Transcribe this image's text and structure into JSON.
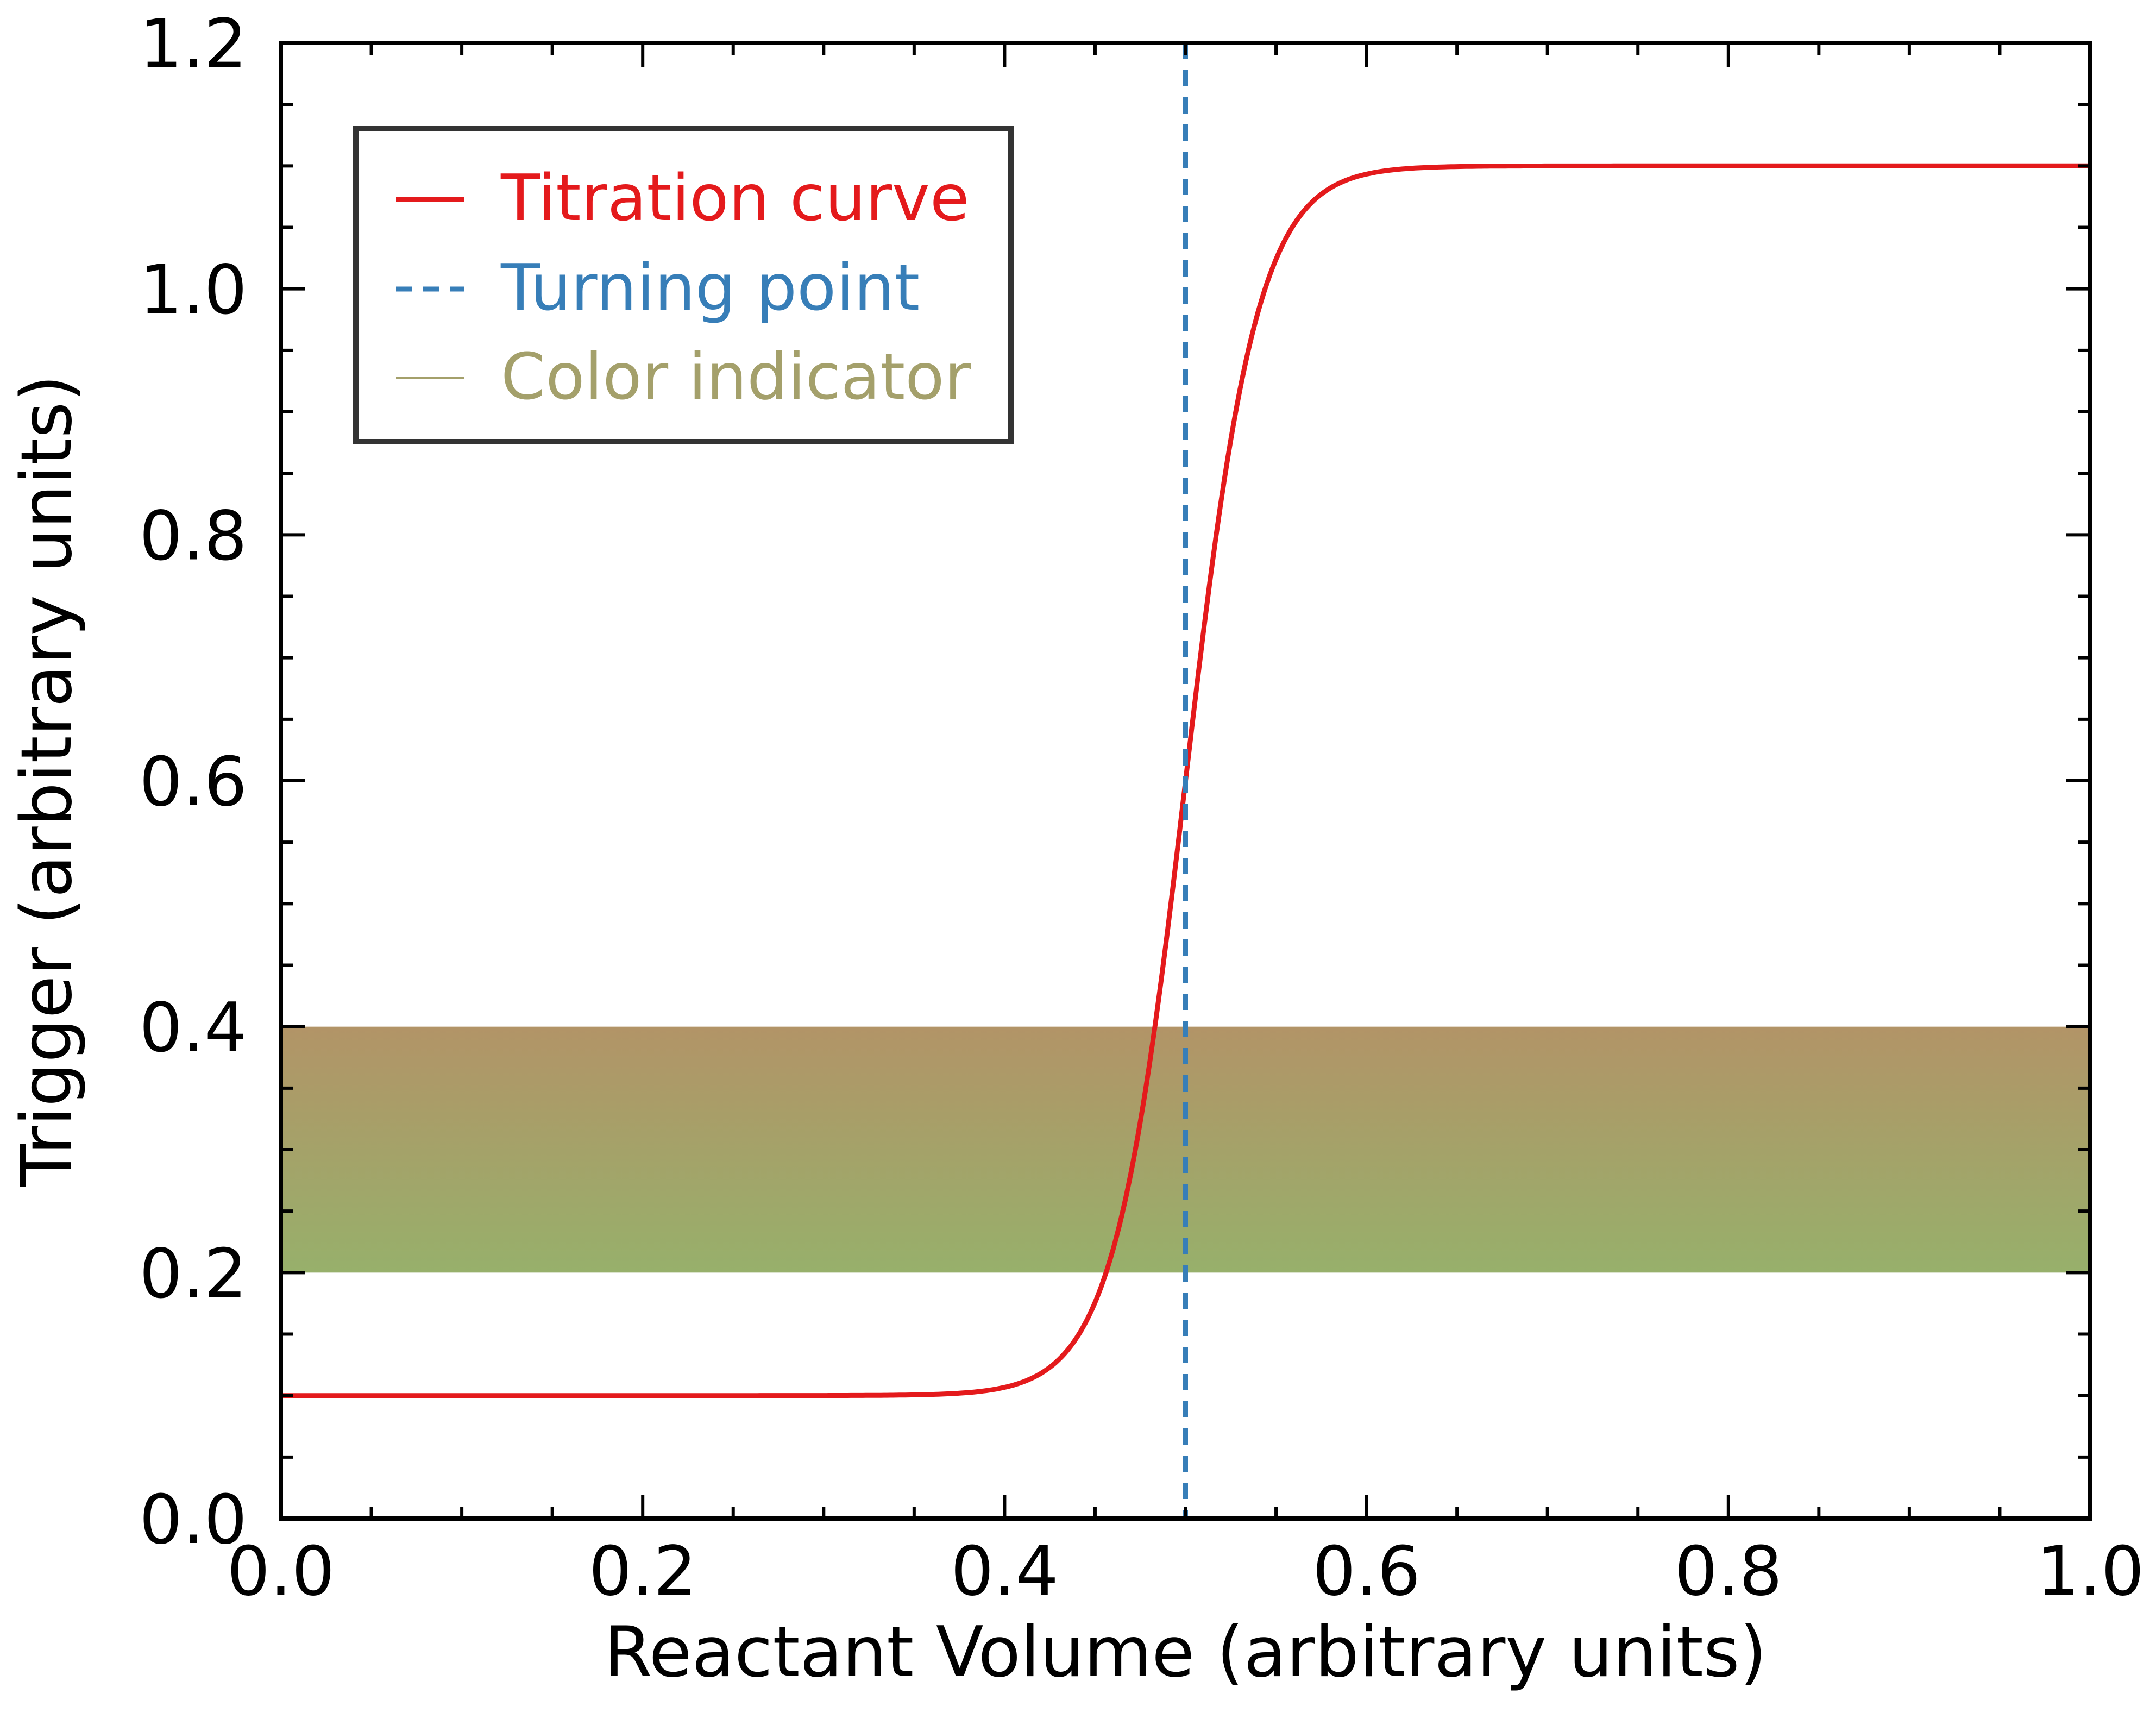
{
  "chart_data": {
    "type": "line",
    "xlabel": "Reactant Volume (arbitrary units)",
    "ylabel": "Trigger (arbitrary units)",
    "xlim": [
      0.0,
      1.0
    ],
    "ylim": [
      0.0,
      1.2
    ],
    "xticks": [
      "0.0",
      "0.2",
      "0.4",
      "0.6",
      "0.8",
      "1.0"
    ],
    "yticks": [
      "0.0",
      "0.2",
      "0.4",
      "0.6",
      "0.8",
      "1.0",
      "1.2"
    ],
    "grid": false,
    "legend_position": "top-left",
    "series": [
      {
        "name": "Titration curve",
        "kind": "sigmoid",
        "color": "#e41a1c",
        "baseline": 0.1,
        "amplitude": 1.0,
        "midpoint": 0.5,
        "steepness": 0.02,
        "x_range": [
          0.0,
          1.0
        ]
      },
      {
        "name": "Turning point",
        "kind": "vertical-dashed-line",
        "color": "#377eb8",
        "x": 0.5
      },
      {
        "name": "Color indicator",
        "kind": "horizontal-band",
        "color": "#a4a06b",
        "y_range": [
          0.2,
          0.4
        ],
        "gradient_top_color": "#b29467",
        "gradient_bottom_color": "#97b06b"
      }
    ]
  }
}
